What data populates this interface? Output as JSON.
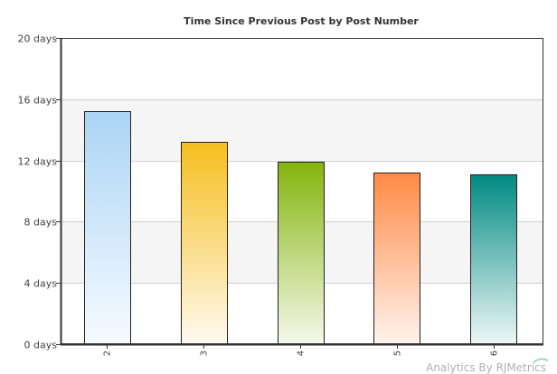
{
  "chart_data": {
    "type": "bar",
    "title": "Time Since Previous Post by Post Number",
    "xlabel": "",
    "ylabel": "",
    "categories": [
      "2",
      "3",
      "4",
      "5",
      "6"
    ],
    "values": [
      15.2,
      13.2,
      11.9,
      11.2,
      11.1
    ],
    "value_unit": "days",
    "y_ticks": [
      "0 days",
      "4 days",
      "8 days",
      "12 days",
      "16 days",
      "20 days"
    ],
    "ylim": [
      0,
      20
    ],
    "grid": true,
    "legend": "none",
    "bar_colors": [
      {
        "top": "#abd4f5",
        "bottom": "#f6fbff"
      },
      {
        "top": "#f5be1e",
        "bottom": "#fffaf0"
      },
      {
        "top": "#84b50c",
        "bottom": "#f6f9ec"
      },
      {
        "top": "#ff8a45",
        "bottom": "#fff3ee"
      },
      {
        "top": "#008a82",
        "bottom": "#eef7f6"
      }
    ],
    "band_color": "#f5f5f5",
    "axis_color": "#333333"
  },
  "watermark": "Analytics By RJMetrics"
}
